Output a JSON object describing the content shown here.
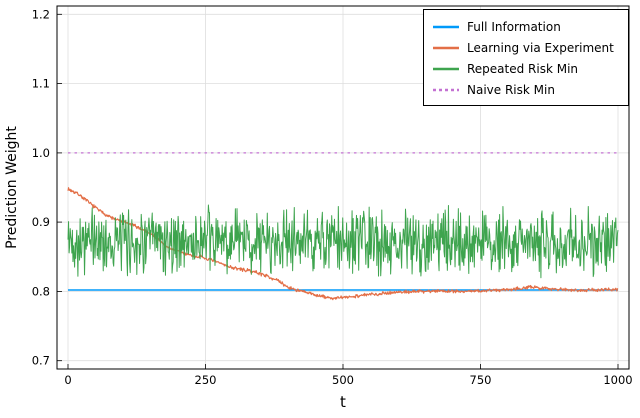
{
  "chart_data": {
    "type": "line",
    "title": "",
    "xlabel": "t",
    "ylabel": "Prediction Weight",
    "xlim": [
      0,
      1000
    ],
    "ylim": [
      0.7,
      1.2
    ],
    "xticks": [
      0,
      250,
      500,
      750,
      1000
    ],
    "xtick_labels": [
      "0",
      "250",
      "500",
      "750",
      "1000"
    ],
    "yticks": [
      0.7,
      0.8,
      0.9,
      1.0,
      1.1,
      1.2
    ],
    "ytick_labels": [
      "0.7",
      "0.8",
      "0.9",
      "1.0",
      "1.1",
      "1.2"
    ],
    "grid": true,
    "legend_position": "top-right",
    "frame": "box",
    "grid_color": "#dedede",
    "axis_color": "#000000",
    "series": [
      {
        "name": "Full Information",
        "color": "#009AFA",
        "linestyle": "solid",
        "linewidth": 1.5,
        "kind": "constant",
        "value": 0.802
      },
      {
        "name": "Learning via Experiment",
        "color": "#E36F47",
        "linestyle": "solid",
        "linewidth": 1.2,
        "kind": "trend-noise",
        "noise_amplitude": 0.003,
        "noise_seed": 7,
        "n_points": 1000,
        "points": [
          [
            0,
            0.948
          ],
          [
            20,
            0.94
          ],
          [
            40,
            0.927
          ],
          [
            60,
            0.915
          ],
          [
            80,
            0.906
          ],
          [
            100,
            0.9
          ],
          [
            120,
            0.895
          ],
          [
            140,
            0.888
          ],
          [
            160,
            0.878
          ],
          [
            180,
            0.864
          ],
          [
            200,
            0.858
          ],
          [
            220,
            0.853
          ],
          [
            240,
            0.85
          ],
          [
            260,
            0.845
          ],
          [
            280,
            0.84
          ],
          [
            300,
            0.834
          ],
          [
            320,
            0.831
          ],
          [
            340,
            0.828
          ],
          [
            360,
            0.823
          ],
          [
            380,
            0.816
          ],
          [
            400,
            0.806
          ],
          [
            420,
            0.801
          ],
          [
            440,
            0.797
          ],
          [
            460,
            0.793
          ],
          [
            480,
            0.79
          ],
          [
            500,
            0.791
          ],
          [
            520,
            0.793
          ],
          [
            540,
            0.795
          ],
          [
            560,
            0.796
          ],
          [
            580,
            0.798
          ],
          [
            600,
            0.799
          ],
          [
            640,
            0.8
          ],
          [
            680,
            0.801
          ],
          [
            720,
            0.8
          ],
          [
            760,
            0.801
          ],
          [
            800,
            0.803
          ],
          [
            840,
            0.806
          ],
          [
            880,
            0.804
          ],
          [
            920,
            0.802
          ],
          [
            960,
            0.802
          ],
          [
            1000,
            0.803
          ]
        ]
      },
      {
        "name": "Repeated Risk Min",
        "color": "#3EA44E",
        "linestyle": "solid",
        "linewidth": 1,
        "kind": "trend-noise",
        "noise_amplitude": 0.055,
        "noise_seed": 42,
        "n_points": 1000,
        "points": [
          [
            0,
            0.872
          ],
          [
            1000,
            0.871
          ]
        ]
      },
      {
        "name": "Naive Risk Min",
        "color": "#C371D2",
        "linestyle": "dash",
        "linewidth": 1.2,
        "kind": "constant",
        "value": 1.0
      }
    ]
  }
}
